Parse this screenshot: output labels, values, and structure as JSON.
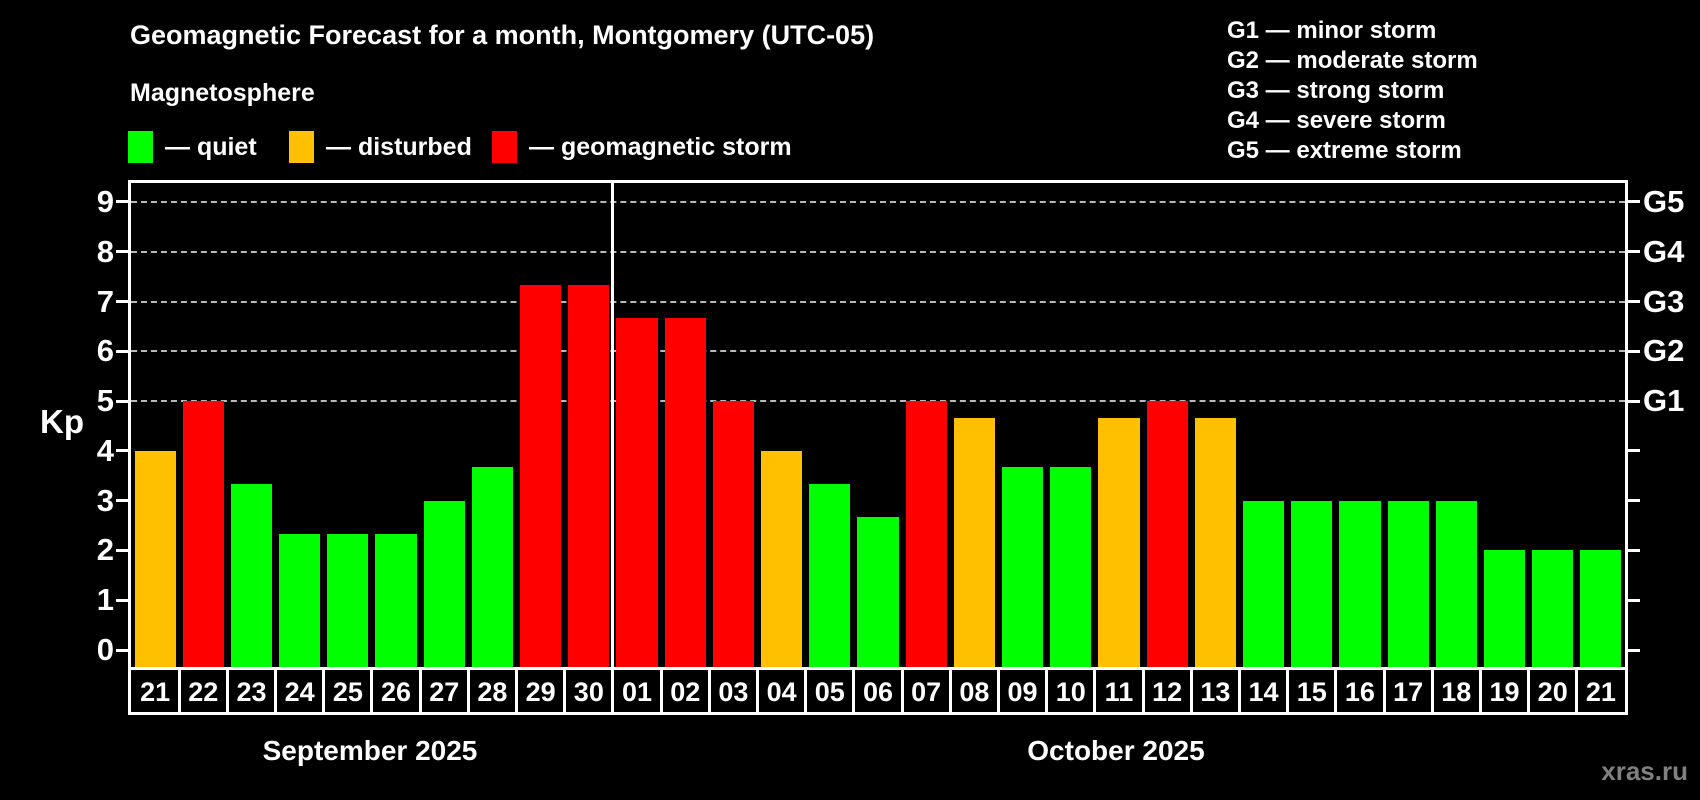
{
  "header": {
    "title": "Geomagnetic Forecast for a month, Montgomery (UTC-05)",
    "subtitle": "Magnetosphere"
  },
  "legend": {
    "items": [
      {
        "name": "quiet",
        "label": "— quiet",
        "color": "#00ff00"
      },
      {
        "name": "disturbed",
        "label": "— disturbed",
        "color": "#ffc000"
      },
      {
        "name": "storm",
        "label": "— geomagnetic storm",
        "color": "#ff0000"
      }
    ]
  },
  "g_scale_legend": {
    "items": [
      {
        "label": "G1 — minor storm"
      },
      {
        "label": "G2 — moderate storm"
      },
      {
        "label": "G3 — strong storm"
      },
      {
        "label": "G4 — severe storm"
      },
      {
        "label": "G5 — extreme storm"
      }
    ]
  },
  "watermark": "xras.ru",
  "chart_data": {
    "type": "bar",
    "title": "Geomagnetic Forecast for a month, Montgomery (UTC-05)",
    "ylabel": "Kp",
    "ylim": [
      -0.34,
      9.38
    ],
    "y_ticks": [
      0,
      1,
      2,
      3,
      4,
      5,
      6,
      7,
      8,
      9
    ],
    "gridlines": [
      5,
      6,
      7,
      8,
      9
    ],
    "grid_on": true,
    "right_axis_labels": [
      {
        "value": 5,
        "label": "G1"
      },
      {
        "value": 6,
        "label": "G2"
      },
      {
        "value": 7,
        "label": "G3"
      },
      {
        "value": 8,
        "label": "G4"
      },
      {
        "value": 9,
        "label": "G5"
      }
    ],
    "months": [
      {
        "label": "September 2025",
        "days": 10
      },
      {
        "label": "October 2025",
        "days": 21
      }
    ],
    "categories": [
      "21",
      "22",
      "23",
      "24",
      "25",
      "26",
      "27",
      "28",
      "29",
      "30",
      "01",
      "02",
      "03",
      "04",
      "05",
      "06",
      "07",
      "08",
      "09",
      "10",
      "11",
      "12",
      "13",
      "14",
      "15",
      "16",
      "17",
      "18",
      "19",
      "20",
      "21"
    ],
    "values": [
      4,
      5,
      3.33,
      2.33,
      2.33,
      2.33,
      3,
      3.67,
      7.33,
      7.33,
      6.67,
      6.67,
      5,
      4,
      3.33,
      2.67,
      5,
      4.67,
      3.67,
      3.67,
      4.67,
      5,
      4.67,
      3,
      3,
      3,
      3,
      3,
      2,
      2,
      2
    ],
    "statuses": [
      "disturbed",
      "storm",
      "quiet",
      "quiet",
      "quiet",
      "quiet",
      "quiet",
      "quiet",
      "storm",
      "storm",
      "storm",
      "storm",
      "storm",
      "disturbed",
      "quiet",
      "quiet",
      "storm",
      "disturbed",
      "quiet",
      "quiet",
      "disturbed",
      "storm",
      "disturbed",
      "quiet",
      "quiet",
      "quiet",
      "quiet",
      "quiet",
      "quiet",
      "quiet",
      "quiet"
    ],
    "colors": {
      "quiet": "#00ff00",
      "disturbed": "#ffc000",
      "storm": "#ff0000"
    }
  }
}
